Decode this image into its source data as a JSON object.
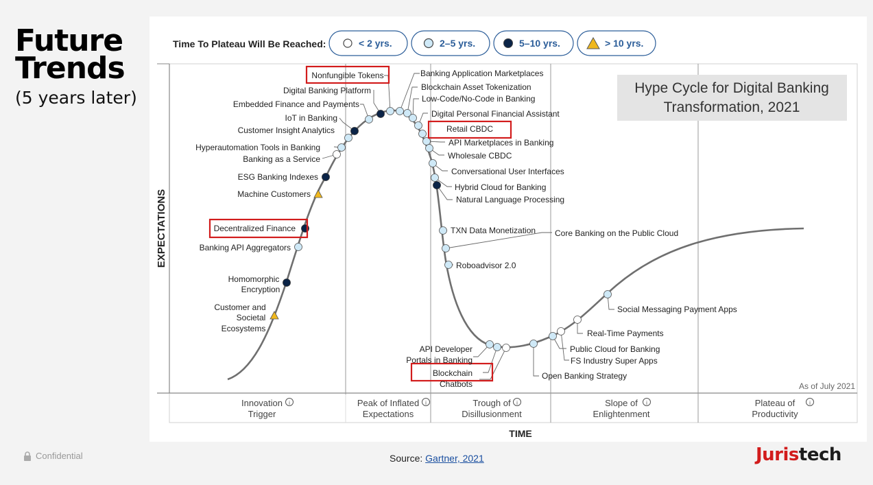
{
  "slide": {
    "title_line1": "Future",
    "title_line2": "Trends",
    "subtitle": "(5 years later)",
    "confidential": "Confidential",
    "source_prefix": "Source: ",
    "source_link": "Gartner, 2021",
    "logo_part1": "Juris",
    "logo_part2": "tech"
  },
  "chart": {
    "legend_title": "Time To Plateau Will Be Reached:",
    "legend": [
      {
        "label": "< 2 yrs.",
        "marker": "circle-white"
      },
      {
        "label": "2–5 yrs.",
        "marker": "circle-light"
      },
      {
        "label": "5–10 yrs.",
        "marker": "circle-dark"
      },
      {
        "label": "> 10 yrs.",
        "marker": "triangle"
      }
    ],
    "title_line1": "Hype Cycle for Digital Banking",
    "title_line2": "Transformation, 2021",
    "y_axis": "EXPECTATIONS",
    "x_axis": "TIME",
    "as_of": "As of July 2021",
    "phases": [
      {
        "line1": "Innovation",
        "line2": "Trigger"
      },
      {
        "line1": "Peak of Inflated",
        "line2": "Expectations"
      },
      {
        "line1": "Trough of",
        "line2": "Disillusionment"
      },
      {
        "line1": "Slope of",
        "line2": "Enlightenment"
      },
      {
        "line1": "Plateau of",
        "line2": "Productivity"
      }
    ],
    "colors": {
      "light": "#cfe9f7",
      "dark": "#0b2447",
      "triangle": "#f0b81e",
      "highlight": "#d21c1c",
      "curve": "#6f6f6f"
    },
    "technologies": [
      "Customer and",
      "Societal",
      "Ecosystems",
      "Homomorphic",
      "Encryption",
      "Banking API Aggregators",
      "Decentralized Finance",
      "Machine Customers",
      "ESG Banking Indexes",
      "Banking as a Service",
      "Hyperautomation Tools in Banking",
      "Customer Insight Analytics",
      "IoT in Banking",
      "Embedded Finance and Payments",
      "Digital Banking Platform",
      "Nonfungible Tokens",
      "Banking Application Marketplaces",
      "Blockchain Asset Tokenization",
      "Low-Code/No-Code in Banking",
      "Digital Personal Financial Assistant",
      "Retail CBDC",
      "API Marketplaces in Banking",
      "Wholesale CBDC",
      "Conversational User Interfaces",
      "Hybrid Cloud for Banking",
      "Natural Language Processing",
      "TXN Data Monetization",
      "Core Banking on the Public Cloud",
      "Roboadvisor 2.0",
      "API Developer",
      "Portals in Banking",
      "Blockchain",
      "Chatbots",
      "Open Banking Strategy",
      "FS Industry Super Apps",
      "Public Cloud for Banking",
      "Real-Time Payments",
      "Social Messaging Payment Apps"
    ]
  }
}
